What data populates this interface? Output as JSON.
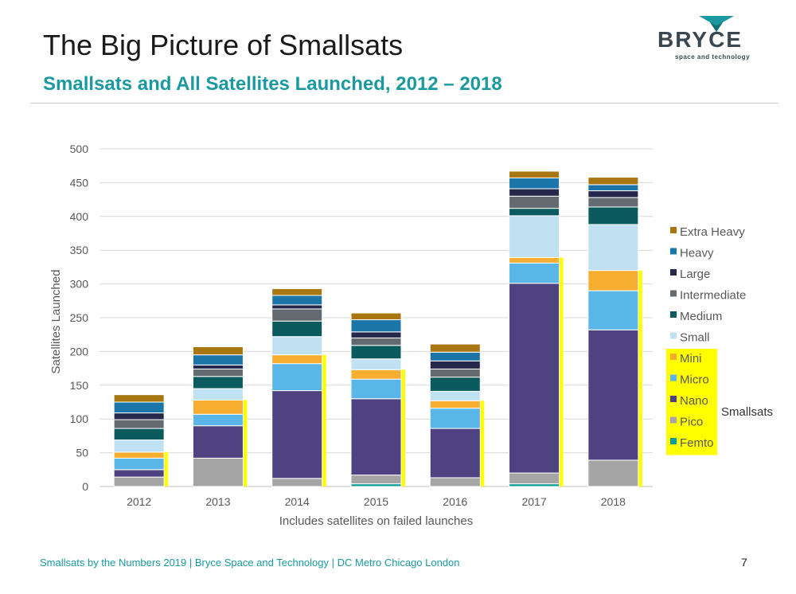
{
  "slide": {
    "title": "The Big Picture of Smallsats",
    "subtitle": "Smallsats and All Satellites Launched, 2012 – 2018",
    "footer": "Smallsats by the Numbers 2019 | Bryce Space and Technology | DC Metro  Chicago  London",
    "page_number": "7"
  },
  "logo": {
    "wordmark": "BRYCE",
    "tagline": "space and technology"
  },
  "colors": {
    "accent": "#1a9aa0",
    "highlight": "#ffff00"
  },
  "chart_data": {
    "type": "bar",
    "stacked": true,
    "title": "",
    "xlabel": "Includes satellites on failed launches",
    "ylabel": "Satellites Launched",
    "ylim": [
      0,
      500
    ],
    "yticks": [
      0,
      50,
      100,
      150,
      200,
      250,
      300,
      350,
      400,
      450,
      500
    ],
    "grid": true,
    "legend_position": "right",
    "categories": [
      "2012",
      "2013",
      "2014",
      "2015",
      "2016",
      "2017",
      "2018"
    ],
    "series": [
      {
        "name": "Femto",
        "color": "#0e9c96",
        "smallsat": true,
        "values": [
          0,
          0,
          0,
          4,
          0,
          4,
          0
        ]
      },
      {
        "name": "Pico",
        "color": "#a5a5a5",
        "smallsat": true,
        "values": [
          14,
          42,
          12,
          13,
          13,
          16,
          39
        ]
      },
      {
        "name": "Nano",
        "color": "#4e4380",
        "smallsat": true,
        "values": [
          11,
          48,
          130,
          113,
          73,
          281,
          193
        ]
      },
      {
        "name": "Micro",
        "color": "#5ab6e6",
        "smallsat": true,
        "values": [
          17,
          17,
          40,
          29,
          30,
          30,
          58
        ]
      },
      {
        "name": "Mini",
        "color": "#f7ad2f",
        "smallsat": true,
        "values": [
          9,
          21,
          13,
          14,
          11,
          8,
          30
        ]
      },
      {
        "name": "Small",
        "color": "#bfe1f2",
        "smallsat": false,
        "values": [
          18,
          17,
          27,
          16,
          14,
          62,
          68
        ]
      },
      {
        "name": "Medium",
        "color": "#0b5b5e",
        "smallsat": false,
        "values": [
          17,
          18,
          23,
          20,
          21,
          11,
          26
        ]
      },
      {
        "name": "Intermediate",
        "color": "#636b70",
        "smallsat": false,
        "values": [
          13,
          11,
          18,
          11,
          12,
          18,
          14
        ]
      },
      {
        "name": "Large",
        "color": "#25274b",
        "smallsat": false,
        "values": [
          10,
          6,
          6,
          9,
          12,
          11,
          10
        ]
      },
      {
        "name": "Heavy",
        "color": "#1b75a8",
        "smallsat": false,
        "values": [
          16,
          15,
          14,
          18,
          13,
          16,
          9
        ]
      },
      {
        "name": "Extra Heavy",
        "color": "#a97712",
        "smallsat": false,
        "values": [
          11,
          12,
          10,
          10,
          12,
          10,
          11
        ]
      }
    ],
    "smallsat_totals": [
      51,
      128,
      195,
      173,
      127,
      339,
      320
    ],
    "annotation": "Smallsats"
  }
}
